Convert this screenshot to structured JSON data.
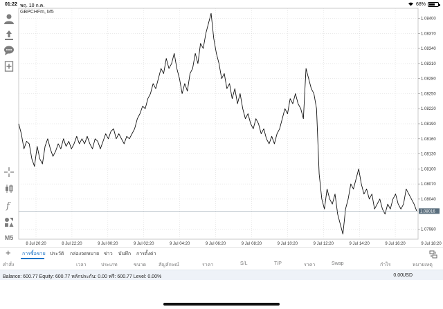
{
  "status_bar": {
    "time": "01:22",
    "date": "พฤ. 10 ก.ค.",
    "battery": "68%",
    "battery_level": 0.68
  },
  "chart": {
    "symbol_label": "GBPCHFm, M5",
    "current_price": "1.08016"
  },
  "left_toolbar": {
    "timeframe_label": "M5"
  },
  "chart_data": {
    "type": "line",
    "title": "GBPCHFm, M5",
    "xlabel": "",
    "ylabel": "",
    "ylim": [
      1.0796,
      1.0842
    ],
    "grid": true,
    "y_ticks": [
      "1.08400",
      "1.08370",
      "1.08340",
      "1.08310",
      "1.08280",
      "1.08250",
      "1.08220",
      "1.08190",
      "1.08160",
      "1.08130",
      "1.08100",
      "1.08070",
      "1.08040",
      "1.07980"
    ],
    "x_ticks": [
      "8 Jul 20:20",
      "8 Jul 22:20",
      "9 Jul 00:20",
      "9 Jul 02:20",
      "9 Jul 04:20",
      "9 Jul 06:20",
      "9 Jul 08:20",
      "9 Jul 10:20",
      "9 Jul 12:20",
      "9 Jul 14:20",
      "9 Jul 16:20",
      "9 Jul 18:20"
    ],
    "current_price": 1.08016,
    "series": [
      {
        "values": [
          1.0819,
          1.0817,
          1.0814,
          1.08155,
          1.0815,
          1.0812,
          1.08105,
          1.08145,
          1.0812,
          1.0811,
          1.08145,
          1.0816,
          1.0814,
          1.08125,
          1.08135,
          1.0815,
          1.0814,
          1.0816,
          1.08145,
          1.08155,
          1.0814,
          1.0815,
          1.08165,
          1.0815,
          1.0816,
          1.0815,
          1.08165,
          1.0815,
          1.0814,
          1.0816,
          1.08155,
          1.0814,
          1.08155,
          1.0817,
          1.0816,
          1.08175,
          1.0818,
          1.0816,
          1.0817,
          1.0816,
          1.0815,
          1.08165,
          1.0816,
          1.0817,
          1.0818,
          1.082,
          1.0821,
          1.08225,
          1.0822,
          1.0824,
          1.0825,
          1.0827,
          1.0826,
          1.0828,
          1.083,
          1.0829,
          1.0832,
          1.083,
          1.0831,
          1.0833,
          1.083,
          1.0828,
          1.0825,
          1.0827,
          1.08255,
          1.0829,
          1.083,
          1.0833,
          1.0831,
          1.0835,
          1.0834,
          1.0837,
          1.0839,
          1.0841,
          1.0836,
          1.0833,
          1.0831,
          1.0828,
          1.0829,
          1.0826,
          1.0827,
          1.0824,
          1.0826,
          1.0823,
          1.0825,
          1.0822,
          1.082,
          1.0821,
          1.0819,
          1.0818,
          1.082,
          1.0819,
          1.0817,
          1.0818,
          1.0816,
          1.0815,
          1.08165,
          1.0815,
          1.0817,
          1.0818,
          1.082,
          1.0822,
          1.0821,
          1.0824,
          1.0823,
          1.0825,
          1.0823,
          1.0822,
          1.082,
          1.083,
          1.0828,
          1.0826,
          1.0825,
          1.0822,
          1.0809,
          1.0804,
          1.0802,
          1.0806,
          1.0804,
          1.0803,
          1.0805,
          1.0801,
          1.0799,
          1.0797,
          1.0802,
          1.0804,
          1.0807,
          1.0806,
          1.0808,
          1.081,
          1.0807,
          1.0805,
          1.0806,
          1.0804,
          1.0805,
          1.0802,
          1.0803,
          1.0804,
          1.0802,
          1.0801,
          1.0803,
          1.0802,
          1.0804,
          1.0805,
          1.0803,
          1.0802,
          1.0803,
          1.0806,
          1.0805,
          1.0804,
          1.0803,
          1.08016
        ]
      }
    ]
  },
  "tabs": [
    {
      "label": "การซื้อขาย",
      "active": true
    },
    {
      "label": "ประวัติ",
      "active": false
    },
    {
      "label": "กล่องจดหมาย",
      "active": false
    },
    {
      "label": "ข่าว",
      "active": false
    },
    {
      "label": "บันทึก",
      "active": false
    },
    {
      "label": "การตั้งค่า",
      "active": false
    }
  ],
  "table_columns": [
    "คำสั่ง",
    "เวลา",
    "ประเภท",
    "ขนาด",
    "สัญลักษณ์",
    "ราคา",
    "S/L",
    "T/P",
    "ราคา",
    "Swap",
    "กำไร",
    "หมายเหตุ"
  ],
  "balance": {
    "text": "Balance: 600.77 Equity: 600.77 หลักประกัน: 0.00 ฟรี: 600.77 Level: 0.00%",
    "total": "0.00",
    "currency": "USD"
  },
  "colors": {
    "accent": "#1a73c7",
    "line": "#000000",
    "price_tag": "#5a6e7d",
    "balance_bg": "#eef2f8"
  }
}
